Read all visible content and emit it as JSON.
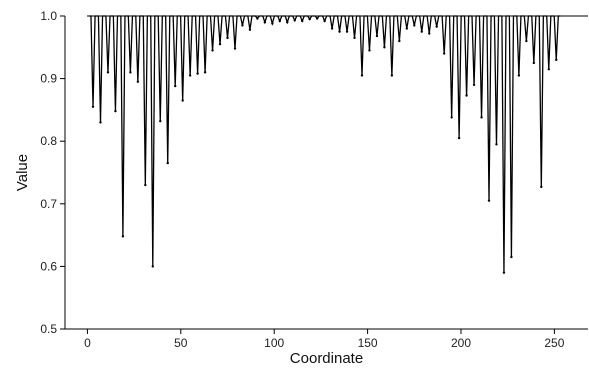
{
  "chart_data": {
    "type": "line",
    "title": "",
    "xlabel": "Coordinate",
    "ylabel": "Value",
    "xlim": [
      -12,
      268
    ],
    "ylim": [
      0.5,
      1.0
    ],
    "x_ticks": [
      0,
      50,
      100,
      150,
      200,
      250
    ],
    "x_tick_labels": [
      "0",
      "50",
      "100",
      "150",
      "200",
      "250"
    ],
    "y_ticks": [
      0.5,
      0.6,
      0.7,
      0.8,
      0.9,
      1.0
    ],
    "y_tick_labels": [
      "0.5",
      "0.6",
      "0.7",
      "0.8",
      "0.9",
      "1.0"
    ],
    "grid": false,
    "legend": "none",
    "baseline": 1.0,
    "line_color": "#000000",
    "series": [
      {
        "x": [
          3,
          7,
          11,
          15,
          19,
          23,
          27,
          31,
          35,
          39,
          43,
          47,
          51,
          55,
          59,
          63,
          67,
          71,
          75,
          79,
          83,
          87,
          91,
          95,
          99,
          103,
          107,
          111,
          115,
          119,
          123,
          127,
          131,
          135,
          139,
          143,
          147,
          151,
          155,
          159,
          163,
          167,
          171,
          175,
          179,
          183,
          187,
          191,
          195,
          199,
          203,
          207,
          211,
          215,
          219,
          223,
          227,
          231,
          235,
          239,
          243,
          247,
          251
        ],
        "values": [
          0.855,
          0.83,
          0.91,
          0.848,
          0.648,
          0.91,
          0.895,
          0.73,
          0.6,
          0.832,
          0.765,
          0.888,
          0.865,
          0.905,
          0.908,
          0.91,
          0.945,
          0.955,
          0.965,
          0.948,
          0.985,
          0.978,
          0.996,
          0.99,
          0.988,
          0.992,
          0.99,
          0.993,
          0.992,
          0.995,
          0.996,
          0.992,
          0.98,
          0.975,
          0.975,
          0.965,
          0.905,
          0.945,
          0.968,
          0.95,
          0.905,
          0.96,
          0.98,
          0.985,
          0.975,
          0.972,
          0.983,
          0.94,
          0.838,
          0.805,
          0.873,
          0.89,
          0.838,
          0.705,
          0.795,
          0.59,
          0.615,
          0.905,
          0.96,
          0.925,
          0.727,
          0.915,
          0.93
        ]
      }
    ]
  }
}
